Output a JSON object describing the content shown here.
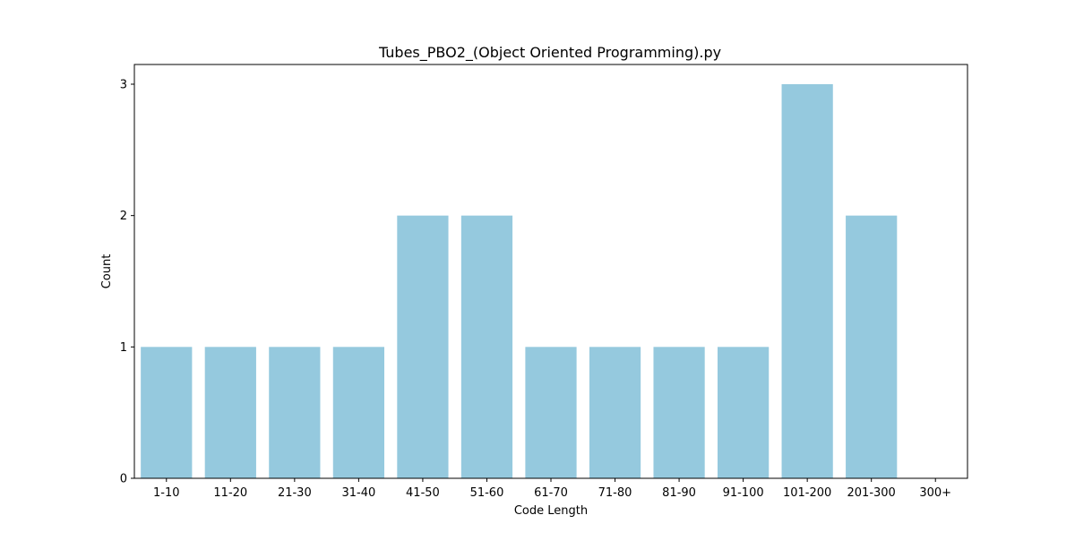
{
  "chart_data": {
    "type": "bar",
    "title": "Tubes_PBO2_(Object Oriented Programming).py",
    "xlabel": "Code Length",
    "ylabel": "Count",
    "categories": [
      "1-10",
      "11-20",
      "21-30",
      "31-40",
      "41-50",
      "51-60",
      "61-70",
      "71-80",
      "81-90",
      "91-100",
      "101-200",
      "201-300",
      "300+"
    ],
    "values": [
      1,
      1,
      1,
      1,
      2,
      2,
      1,
      1,
      1,
      1,
      3,
      2,
      0
    ],
    "yticks": [
      0,
      1,
      2,
      3
    ],
    "ylim": [
      0,
      3.15
    ],
    "grid": false,
    "legend": "none",
    "bar_color": "#95c9de",
    "axis_color": "#000000"
  }
}
